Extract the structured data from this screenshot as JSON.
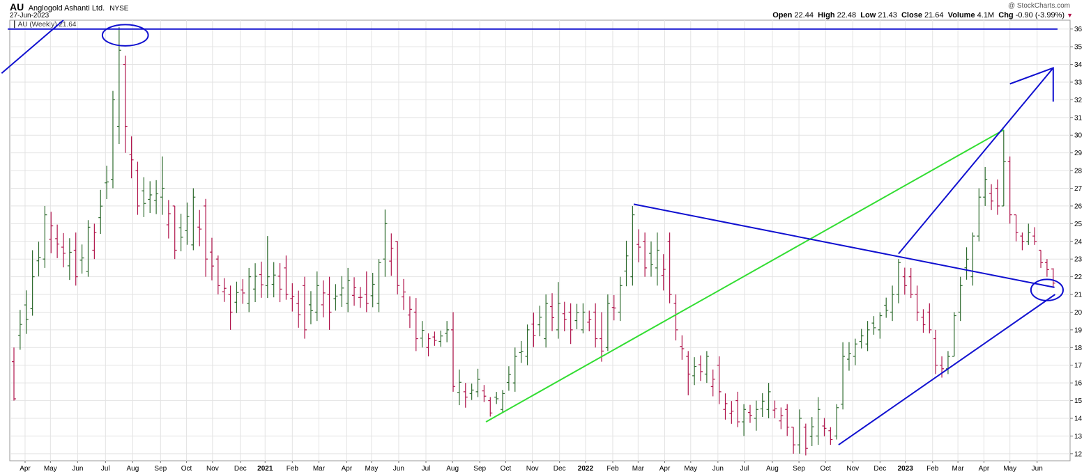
{
  "header": {
    "ticker": "AU",
    "company": "Anglogold Ashanti Ltd.",
    "exchange": "NYSE",
    "date": "27-Jun-2023",
    "watermark": "@ StockCharts.com",
    "legend": "AU (Weekly) 21.64"
  },
  "ohlc": {
    "open_label": "Open",
    "open": "22.44",
    "high_label": "High",
    "high": "22.48",
    "low_label": "Low",
    "low": "21.43",
    "close_label": "Close",
    "close": "21.64",
    "volume_label": "Volume",
    "volume": "4.1M",
    "chg_label": "Chg",
    "chg": "-0.90 (-3.99%)"
  },
  "colors": {
    "up": "#2e6b2e",
    "down": "#b0144b",
    "trendline_blue": "#1010d0",
    "trendline_green": "#33dd33",
    "grid": "#e3e3e3"
  },
  "chart_data": {
    "type": "ohlc_bar",
    "timeframe": "weekly",
    "y_axis": {
      "side": "right",
      "range": [
        11.6,
        36.5
      ],
      "ticks": [
        12,
        13,
        14,
        15,
        16,
        17,
        18,
        19,
        20,
        21,
        22,
        23,
        24,
        25,
        26,
        27,
        28,
        29,
        30,
        31,
        32,
        33,
        34,
        35,
        36
      ]
    },
    "x_axis": {
      "range": [
        0,
        168.7
      ],
      "labels": [
        {
          "w": 1.8,
          "label": "Apr"
        },
        {
          "w": 5.9,
          "label": "May"
        },
        {
          "w": 10.3,
          "label": "Jun"
        },
        {
          "w": 14.8,
          "label": "Jul"
        },
        {
          "w": 19.2,
          "label": "Aug"
        },
        {
          "w": 23.7,
          "label": "Sep"
        },
        {
          "w": 27.9,
          "label": "Oct"
        },
        {
          "w": 32.1,
          "label": "Nov"
        },
        {
          "w": 36.6,
          "label": "Dec"
        },
        {
          "w": 40.6,
          "label": "2021",
          "bold": true
        },
        {
          "w": 45.0,
          "label": "Feb"
        },
        {
          "w": 49.3,
          "label": "Mar"
        },
        {
          "w": 53.8,
          "label": "Apr"
        },
        {
          "w": 57.8,
          "label": "May"
        },
        {
          "w": 62.2,
          "label": "Jun"
        },
        {
          "w": 66.6,
          "label": "Jul"
        },
        {
          "w": 70.9,
          "label": "Aug"
        },
        {
          "w": 75.3,
          "label": "Sep"
        },
        {
          "w": 79.5,
          "label": "Oct"
        },
        {
          "w": 83.8,
          "label": "Nov"
        },
        {
          "w": 88.2,
          "label": "Dec"
        },
        {
          "w": 92.4,
          "label": "2022",
          "bold": true
        },
        {
          "w": 96.8,
          "label": "Feb"
        },
        {
          "w": 100.9,
          "label": "Mar"
        },
        {
          "w": 105.2,
          "label": "Apr"
        },
        {
          "w": 109.4,
          "label": "May"
        },
        {
          "w": 113.8,
          "label": "Jun"
        },
        {
          "w": 118.1,
          "label": "Jul"
        },
        {
          "w": 122.6,
          "label": "Aug"
        },
        {
          "w": 126.9,
          "label": "Sep"
        },
        {
          "w": 131.2,
          "label": "Oct"
        },
        {
          "w": 135.6,
          "label": "Nov"
        },
        {
          "w": 140.0,
          "label": "Dec"
        },
        {
          "w": 144.1,
          "label": "2023",
          "bold": true
        },
        {
          "w": 148.5,
          "label": "Feb"
        },
        {
          "w": 152.6,
          "label": "Mar"
        },
        {
          "w": 156.8,
          "label": "Apr"
        },
        {
          "w": 161.0,
          "label": "May"
        },
        {
          "w": 165.4,
          "label": "Jun"
        }
      ]
    },
    "anchors": [
      [
        0,
        18.0,
        15.0,
        17.2,
        15.1,
        18.0
      ],
      [
        3,
        23.5,
        19.8,
        20.2,
        22.0,
        21.0
      ],
      [
        5,
        26.0,
        22.5,
        23.0,
        25.5,
        25.0
      ],
      [
        10,
        24.5,
        21.5,
        23.5,
        22.0,
        22.5
      ],
      [
        12,
        25.2,
        22.0,
        22.3,
        24.8,
        23.5
      ],
      [
        13,
        25.0,
        23.0,
        23.5,
        24.5,
        24.0
      ],
      [
        16,
        32.5,
        27.0,
        27.5,
        32.0,
        29.0
      ],
      [
        17,
        36.1,
        29.5,
        30.5,
        34.8,
        34.0
      ],
      [
        18,
        34.5,
        29.0,
        34.0,
        30.5,
        31.0
      ],
      [
        20,
        28.5,
        25.5,
        28.0,
        26.0,
        26.5
      ],
      [
        24,
        28.8,
        25.5,
        26.5,
        27.0,
        26.5
      ],
      [
        26,
        26.0,
        23.0,
        26.0,
        23.5,
        24.0
      ],
      [
        29,
        27.0,
        23.5,
        23.8,
        26.5,
        25.5
      ],
      [
        31,
        26.4,
        22.0,
        26.0,
        23.0,
        24.0
      ],
      [
        33,
        23.2,
        21.0,
        23.0,
        21.5,
        22.0
      ],
      [
        35,
        21.5,
        19.0,
        21.0,
        20.0,
        20.5
      ],
      [
        38,
        22.5,
        20.0,
        20.5,
        22.0,
        21.5
      ],
      [
        41,
        24.3,
        20.8,
        21.5,
        22.0,
        22.0
      ],
      [
        44,
        23.2,
        20.7,
        22.5,
        21.0,
        21.5
      ],
      [
        47,
        22.0,
        18.5,
        21.5,
        19.0,
        19.5
      ],
      [
        49,
        22.3,
        19.5,
        20.0,
        21.5,
        21.0
      ],
      [
        51,
        22.0,
        19.0,
        21.0,
        20.0,
        20.5
      ],
      [
        54,
        22.5,
        20.0,
        20.5,
        21.8,
        21.5
      ],
      [
        57,
        22.3,
        20.0,
        21.0,
        20.5,
        20.5
      ],
      [
        59,
        23.0,
        20.0,
        20.5,
        22.8,
        22.0
      ],
      [
        60,
        25.8,
        22.0,
        23.0,
        25.0,
        24.5
      ],
      [
        62,
        24.0,
        21.0,
        24.0,
        21.5,
        22.0
      ],
      [
        65,
        20.8,
        17.8,
        20.0,
        18.5,
        19.0
      ],
      [
        67,
        18.8,
        17.5,
        18.0,
        18.5,
        18.5
      ],
      [
        70,
        19.5,
        18.3,
        18.8,
        19.0,
        18.5
      ],
      [
        71,
        20.0,
        15.5,
        19.0,
        15.8,
        16.5
      ],
      [
        73,
        16.0,
        14.6,
        15.5,
        15.2,
        15.0
      ],
      [
        75,
        16.8,
        15.2,
        15.5,
        16.2,
        16.0
      ],
      [
        77,
        15.2,
        14.1,
        15.0,
        14.3,
        14.8
      ],
      [
        79,
        15.6,
        14.3,
        14.5,
        15.4,
        15.5
      ],
      [
        81,
        18.0,
        15.5,
        16.0,
        17.5,
        17.0
      ],
      [
        83,
        19.3,
        17.0,
        17.5,
        19.0,
        18.5
      ],
      [
        86,
        21.0,
        18.0,
        18.5,
        20.5,
        20.0
      ],
      [
        88,
        21.7,
        18.5,
        19.0,
        20.5,
        20.0
      ],
      [
        90,
        20.5,
        18.2,
        20.0,
        19.0,
        19.5
      ],
      [
        92,
        20.5,
        18.8,
        19.0,
        20.0,
        20.0
      ],
      [
        94,
        20.5,
        18.0,
        20.0,
        18.5,
        19.0
      ],
      [
        95,
        20.0,
        17.2,
        18.5,
        17.8,
        18.0
      ],
      [
        96,
        21.0,
        17.8,
        18.0,
        20.5,
        19.5
      ],
      [
        98,
        22.0,
        19.5,
        20.0,
        21.5,
        21.0
      ],
      [
        100,
        26.0,
        21.5,
        22.0,
        25.5,
        24.5
      ],
      [
        102,
        24.5,
        22.0,
        24.0,
        22.5,
        23.0
      ],
      [
        104,
        24.5,
        21.5,
        22.5,
        23.5,
        23.0
      ],
      [
        106,
        24.5,
        20.5,
        24.0,
        21.0,
        21.5
      ],
      [
        107,
        21.0,
        18.4,
        20.5,
        19.0,
        19.5
      ],
      [
        109,
        17.8,
        15.3,
        17.5,
        16.5,
        16.5
      ],
      [
        112,
        17.8,
        16.0,
        16.5,
        17.5,
        17.0
      ],
      [
        114,
        17.5,
        14.8,
        17.0,
        15.5,
        15.0
      ],
      [
        117,
        15.5,
        13.5,
        15.0,
        13.8,
        14.0
      ],
      [
        118,
        14.8,
        13.0,
        13.8,
        14.5,
        14.0
      ],
      [
        120,
        15.0,
        13.3,
        14.0,
        14.5,
        14.5
      ],
      [
        122,
        16.0,
        14.0,
        14.5,
        15.5,
        15.0
      ],
      [
        125,
        14.8,
        13.0,
        14.5,
        13.5,
        13.5
      ],
      [
        126,
        13.5,
        12.0,
        13.5,
        12.5,
        12.5
      ],
      [
        127,
        14.5,
        12.0,
        12.5,
        14.0,
        13.5
      ],
      [
        128,
        13.7,
        11.9,
        13.5,
        12.3,
        12.5
      ],
      [
        130,
        15.2,
        12.5,
        13.0,
        14.5,
        14.0
      ],
      [
        132,
        13.5,
        12.5,
        13.3,
        12.8,
        13.0
      ],
      [
        133,
        14.8,
        12.8,
        13.0,
        14.6,
        14.5
      ],
      [
        134,
        18.3,
        14.5,
        14.8,
        17.5,
        17.0
      ],
      [
        136,
        18.5,
        17.0,
        17.5,
        18.2,
        18.0
      ],
      [
        138,
        19.5,
        17.8,
        18.2,
        19.0,
        19.0
      ],
      [
        140,
        20.0,
        18.5,
        19.0,
        19.8,
        19.5
      ],
      [
        142,
        21.5,
        19.5,
        20.0,
        21.0,
        21.0
      ],
      [
        143,
        23.0,
        20.5,
        21.0,
        22.8,
        22.5
      ],
      [
        145,
        22.5,
        20.8,
        22.0,
        21.0,
        21.0
      ],
      [
        146,
        21.5,
        19.5,
        21.0,
        20.0,
        20.0
      ],
      [
        148,
        20.5,
        18.8,
        20.0,
        19.0,
        19.0
      ],
      [
        149,
        19.0,
        16.5,
        18.5,
        17.0,
        17.0
      ],
      [
        150,
        17.5,
        16.3,
        17.0,
        16.8,
        16.8
      ],
      [
        151,
        17.8,
        16.5,
        16.8,
        17.5,
        17.5
      ],
      [
        152,
        20.0,
        17.5,
        17.5,
        19.8,
        19.5
      ],
      [
        153,
        22.0,
        19.5,
        20.0,
        21.5,
        21.5
      ],
      [
        155,
        24.5,
        21.5,
        22.0,
        24.3,
        24.0
      ],
      [
        156,
        27.0,
        24.0,
        24.3,
        26.5,
        26.5
      ],
      [
        157,
        28.2,
        26.0,
        26.5,
        27.5,
        27.0
      ],
      [
        159,
        27.5,
        25.5,
        27.0,
        26.0,
        26.0
      ],
      [
        160,
        30.3,
        26.0,
        26.0,
        28.5,
        28.0
      ],
      [
        161,
        28.8,
        25.0,
        28.5,
        25.5,
        25.5
      ],
      [
        162,
        25.5,
        24.0,
        25.5,
        24.5,
        24.5
      ],
      [
        163,
        24.5,
        23.5,
        24.3,
        24.0,
        24.0
      ],
      [
        164,
        25.0,
        23.8,
        24.0,
        24.5,
        24.3
      ],
      [
        165,
        24.8,
        23.8,
        24.3,
        24.0,
        23.9
      ],
      [
        166,
        23.5,
        22.5,
        23.5,
        22.8,
        22.8
      ],
      [
        167,
        23.0,
        22.0,
        22.8,
        22.4,
        22.4
      ],
      [
        168,
        22.48,
        21.43,
        22.44,
        21.64,
        21.64
      ]
    ],
    "annotations": {
      "lines": [
        {
          "color": "blue",
          "pts": [
            [
              -2.0,
              33.5
            ],
            [
              8.0,
              36.5
            ]
          ]
        },
        {
          "color": "blue",
          "pts": [
            [
              -1.0,
              36.0
            ],
            [
              168.7,
              36.0
            ]
          ]
        },
        {
          "color": "green",
          "pts": [
            [
              76.3,
              13.8
            ],
            [
              160.0,
              30.3
            ]
          ]
        },
        {
          "color": "blue",
          "pts": [
            [
              100.2,
              26.1
            ],
            [
              168.2,
              21.4
            ]
          ]
        },
        {
          "color": "blue",
          "pts": [
            [
              133.3,
              12.5
            ],
            [
              168.3,
              21.0
            ]
          ]
        },
        {
          "color": "blue",
          "pts": [
            [
              143.0,
              23.3
            ],
            [
              168.0,
              33.8
            ]
          ]
        },
        {
          "color": "blue",
          "pts": [
            [
              161.0,
              32.9
            ],
            [
              168.0,
              33.8
            ],
            [
              168.0,
              31.9
            ]
          ]
        }
      ],
      "ellipses": [
        {
          "color": "blue",
          "cx": 18.0,
          "cy": 35.65,
          "rw": 3.7,
          "rh": 0.6
        },
        {
          "color": "blue",
          "cx": 167.0,
          "cy": 21.25,
          "rw": 2.6,
          "rh": 0.6
        }
      ]
    }
  }
}
